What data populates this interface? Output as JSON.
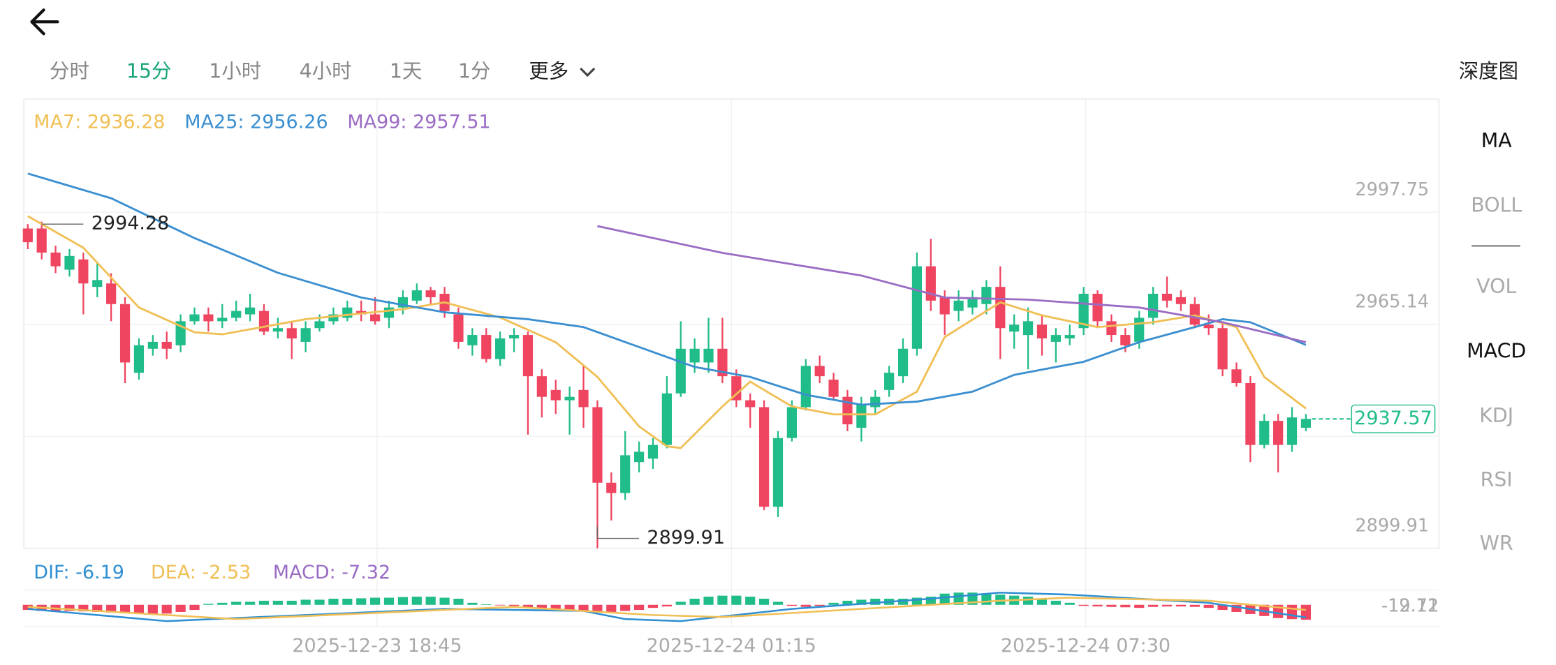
{
  "tabs": [
    "分时",
    "15分",
    "1小时",
    "4小时",
    "1天",
    "1分"
  ],
  "more": "更多",
  "depth": "深度图",
  "indicators": [
    "MA",
    "BOLL",
    "VOL",
    "MACD",
    "KDJ",
    "RSI",
    "WR"
  ],
  "chart_data": [
    {
      "type": "candlestick",
      "open": [
        2993,
        2993,
        2986,
        2981,
        2984,
        2976,
        2977,
        2971,
        2951,
        2958,
        2960,
        2959,
        2966,
        2968,
        2966,
        2967,
        2968,
        2969,
        2963,
        2964,
        2960,
        2964,
        2966,
        2967,
        2969,
        2968,
        2967,
        2970,
        2972,
        2975,
        2974,
        2968,
        2959,
        2962,
        2955,
        2961,
        2962,
        2950,
        2946,
        2943,
        2946,
        2941,
        2919,
        2916,
        2925,
        2926,
        2930,
        2945,
        2954,
        2954,
        2958,
        2950,
        2943,
        2941,
        2912,
        2932,
        2941,
        2953,
        2949,
        2944,
        2935,
        2941,
        2946,
        2950,
        2958,
        2982,
        2973,
        2969,
        2970,
        2971,
        2976,
        2963,
        2962,
        2965,
        2960,
        2961,
        2964,
        2974,
        2966,
        2962,
        2960,
        2967,
        2974,
        2973,
        2971,
        2965,
        2964,
        2952,
        2948,
        2930,
        2937,
        2930,
        2935
      ],
      "high": [
        2994.28,
        2995,
        2988,
        2987,
        2986,
        2983,
        2980,
        2973,
        2961,
        2962,
        2963,
        2968,
        2970,
        2970,
        2971,
        2972,
        2974,
        2971,
        2967,
        2966,
        2966,
        2968,
        2970,
        2972,
        2972,
        2973,
        2972,
        2975,
        2977,
        2976,
        2976,
        2970,
        2964,
        2964,
        2963,
        2964,
        2963,
        2952,
        2949,
        2947,
        2953,
        2943,
        2922,
        2934,
        2931,
        2932,
        2950,
        2966,
        2961,
        2967,
        2967,
        2952,
        2945,
        2943,
        2934,
        2943,
        2955,
        2956,
        2951,
        2946,
        2944,
        2946,
        2953,
        2961,
        2986,
        2990,
        2975,
        2975,
        2975,
        2978,
        2982,
        2968,
        2970,
        2968,
        2964,
        2965,
        2976,
        2975,
        2968,
        2964,
        2969,
        2976,
        2979,
        2975,
        2973,
        2968,
        2966,
        2954,
        2950,
        2939,
        2939,
        2941,
        2939
      ],
      "low": [
        2987,
        2984,
        2980,
        2979,
        2968,
        2973,
        2966,
        2948,
        2949,
        2956,
        2955,
        2957,
        2965,
        2963,
        2964,
        2966,
        2966,
        2962,
        2961,
        2955,
        2957,
        2963,
        2965,
        2966,
        2966,
        2965,
        2964,
        2968,
        2971,
        2971,
        2967,
        2958,
        2956,
        2954,
        2953,
        2957,
        2933,
        2938,
        2939,
        2933,
        2935,
        2899.91,
        2908,
        2914,
        2922,
        2923,
        2929,
        2944,
        2951,
        2951,
        2948,
        2941,
        2935,
        2911,
        2909,
        2931,
        2940,
        2948,
        2943,
        2934,
        2931,
        2939,
        2944,
        2948,
        2956,
        2969,
        2962,
        2966,
        2968,
        2968,
        2955,
        2958,
        2952,
        2956,
        2954,
        2959,
        2962,
        2964,
        2960,
        2957,
        2958,
        2965,
        2970,
        2969,
        2964,
        2962,
        2950,
        2947,
        2925,
        2929,
        2922,
        2928,
        2934
      ],
      "close": [
        2989,
        2986,
        2982,
        2985,
        2977,
        2978,
        2971,
        2954,
        2959,
        2960,
        2958,
        2966,
        2968,
        2966,
        2967,
        2969,
        2970,
        2963,
        2964,
        2961,
        2964,
        2966,
        2968,
        2970,
        2968,
        2966,
        2970,
        2973,
        2975,
        2973,
        2969,
        2960,
        2962,
        2955,
        2961,
        2962,
        2950,
        2944,
        2943,
        2944,
        2941,
        2919,
        2916,
        2927,
        2928,
        2930,
        2945,
        2958,
        2958,
        2958,
        2950,
        2943,
        2941,
        2912,
        2932,
        2941,
        2953,
        2950,
        2944,
        2936,
        2942,
        2944,
        2951,
        2958,
        2982,
        2972,
        2968,
        2972,
        2973,
        2976,
        2964,
        2965,
        2966,
        2961,
        2962,
        2962,
        2974,
        2966,
        2962,
        2959,
        2967,
        2974,
        2972,
        2971,
        2965,
        2964,
        2952,
        2948,
        2930,
        2937,
        2930,
        2938,
        2937.57
      ],
      "up_color": "#20bc8a",
      "down_color": "#ef4560",
      "ylim": [
        2899.91,
        3030.65
      ],
      "yticks": [
        2899.91,
        2965.14,
        2997.75
      ],
      "grid": true,
      "series": [
        {
          "name": "MA7: 2936.28",
          "color": "#f0bf55",
          "x": [
            0,
            4,
            8,
            12,
            14,
            20,
            27,
            30,
            34,
            38,
            41,
            44,
            46,
            47,
            50,
            52,
            55,
            58,
            61,
            64,
            66,
            70,
            73,
            77,
            81,
            84,
            87,
            89,
            92
          ],
          "values": [
            2996.6,
            2987.4,
            2970.0,
            2962.8,
            2962.2,
            2966.6,
            2969.5,
            2971.5,
            2967.1,
            2959.9,
            2949.8,
            2935.4,
            2929.6,
            2929.1,
            2941.2,
            2948.4,
            2941.2,
            2938.9,
            2938.9,
            2945.5,
            2961.4,
            2971.5,
            2967.7,
            2964.3,
            2965.7,
            2967.7,
            2964.3,
            2949.8,
            2940.6
          ]
        },
        {
          "name": "MA25: 2956.26",
          "color": "#3b8fd0",
          "x": [
            0,
            6,
            12,
            18,
            24,
            30,
            36,
            40,
            44,
            48,
            52,
            56,
            60,
            64,
            68,
            71,
            76,
            80,
            84,
            86,
            88,
            92
          ],
          "values": [
            3009.0,
            3001.8,
            2990.2,
            2980.1,
            2972.9,
            2968.6,
            2966.6,
            2964.3,
            2958.5,
            2952.7,
            2949.8,
            2944.6,
            2941.7,
            2942.6,
            2945.5,
            2950.4,
            2954.2,
            2959.9,
            2964.3,
            2966.6,
            2965.7,
            2959.1
          ]
        },
        {
          "name": "MA99: 2957.51",
          "color": "#9a6cc4",
          "x": [
            41,
            50,
            60,
            66,
            72,
            80,
            86,
            92
          ],
          "values": [
            2993.7,
            2985.9,
            2979.3,
            2972.9,
            2972.3,
            2970.0,
            2965.7,
            2959.9
          ]
        }
      ],
      "max_label": 2994.28,
      "min_label": 2899.91,
      "last": 2937.57
    },
    {
      "type": "macd",
      "legend": [
        {
          "name": "DIF: -6.19",
          "color": "#2f8fd2"
        },
        {
          "name": "DEA: -2.53",
          "color": "#f0bf55"
        },
        {
          "name": "MACD: -7.32",
          "color": "#9a6cc4"
        }
      ],
      "histogram": [
        -2.5,
        -3,
        -3,
        -3,
        -3.2,
        -3.5,
        -3.8,
        -4,
        -4.5,
        -4.5,
        -4.3,
        -3.5,
        -2.5,
        0.5,
        1,
        1.5,
        1.5,
        2,
        2,
        2,
        2.5,
        2.5,
        3,
        3,
        3.2,
        3.5,
        3.5,
        3.8,
        4,
        4,
        3.5,
        3,
        1,
        0.3,
        -0.3,
        -0.5,
        -1.5,
        -2,
        -2.5,
        -3,
        -3,
        -3.5,
        -3.5,
        -3,
        -2.5,
        -1.5,
        -0.8,
        1.5,
        3,
        4,
        4.5,
        4.5,
        4,
        3,
        1.5,
        -0.5,
        -1,
        -0.5,
        1,
        2,
        2.5,
        3,
        3,
        3,
        3.5,
        4,
        5.5,
        6,
        6,
        5.5,
        5,
        4.5,
        4,
        3,
        2,
        1,
        -0.5,
        -0.8,
        -1,
        -1.2,
        -1.5,
        -1,
        -0.8,
        -0.8,
        -1,
        -1.5,
        -2.5,
        -3.5,
        -4.5,
        -5.5,
        -6.5,
        -7,
        -7.32
      ],
      "dif": {
        "x": [
          0,
          10,
          20,
          30,
          40,
          43,
          47,
          55,
          65,
          70,
          75,
          80,
          85,
          92
        ],
        "values": [
          -2,
          -8,
          -5,
          -2,
          -3,
          -7,
          -8,
          -2,
          3,
          6,
          5,
          3,
          1,
          -6.19
        ]
      },
      "dea": {
        "x": [
          0,
          10,
          15,
          25,
          35,
          45,
          50,
          60,
          70,
          75,
          85,
          92
        ],
        "values": [
          -1,
          -5,
          -7,
          -4,
          -1,
          -5,
          -6,
          -2,
          2,
          3.5,
          2,
          -2.53
        ]
      },
      "ylim": [
        -10.7,
        7.3
      ],
      "axis_labels": [
        "-12.11",
        "-19.72"
      ],
      "x_labels": [
        "2025-12-23 18:45",
        "2025-12-24 01:15",
        "2025-12-24 07:30"
      ]
    }
  ]
}
